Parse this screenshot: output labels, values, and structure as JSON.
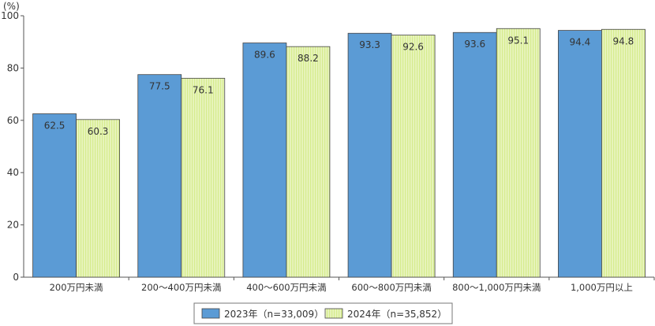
{
  "chart_data": {
    "type": "bar",
    "unit_label": "(%)",
    "ylim": [
      0,
      100
    ],
    "yticks": [
      0,
      20,
      40,
      60,
      80,
      100
    ],
    "grid": false,
    "legend_position": "bottom-center",
    "categories": [
      "200万円未満",
      "200～400万円未満",
      "400～600万円未満",
      "600～800万円未満",
      "800～1,000万円未満",
      "1,000万円以上"
    ],
    "series": [
      {
        "name": "2023年（n=33,009）",
        "values": [
          62.5,
          77.5,
          89.6,
          93.3,
          93.6,
          94.4
        ],
        "color": "#5b9bd5",
        "pattern": "solid"
      },
      {
        "name": "2024年（n=35,852）",
        "values": [
          60.3,
          76.1,
          88.2,
          92.6,
          95.1,
          94.8
        ],
        "color": "#d6ec8e",
        "pattern": "vertical-stripes"
      }
    ]
  }
}
